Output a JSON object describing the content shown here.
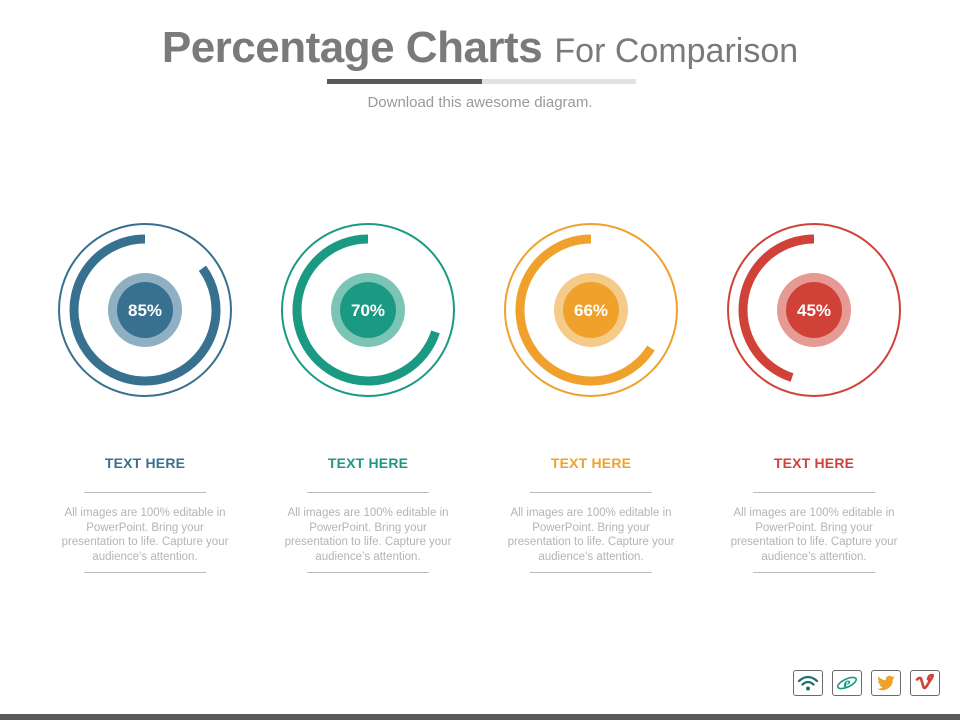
{
  "header": {
    "title_bold": "Percentage Charts",
    "title_light": "For Comparison",
    "subtitle": "Download this awesome diagram."
  },
  "chart_data": {
    "type": "pie",
    "style": "donut-gauges",
    "items": [
      {
        "value": 85,
        "label": "85%",
        "heading": "TEXT HERE",
        "color": "#37718f",
        "inner_color": "#8fb0c2"
      },
      {
        "value": 70,
        "label": "70%",
        "heading": "TEXT HERE",
        "color": "#1a9a82",
        "inner_color": "#7cc5b6"
      },
      {
        "value": 66,
        "label": "66%",
        "heading": "TEXT HERE",
        "color": "#efa12c",
        "inner_color": "#f5cb8a"
      },
      {
        "value": 45,
        "label": "45%",
        "heading": "TEXT HERE",
        "color": "#d04238",
        "inner_color": "#e69a94"
      }
    ]
  },
  "cards": [
    {
      "body": "All images are 100% editable in PowerPoint. Bring your presentation to life. Capture your audience’s attention."
    },
    {
      "body": "All images are 100% editable in PowerPoint. Bring your presentation to life. Capture your audience’s attention."
    },
    {
      "body": "All images are 100% editable in PowerPoint. Bring your presentation to life. Capture your audience’s attention."
    },
    {
      "body": "All images are 100% editable in PowerPoint. Bring your presentation to life. Capture your audience’s attention."
    }
  ],
  "social": [
    {
      "icon": "wifi-icon",
      "color": "#1f6f6a"
    },
    {
      "icon": "internet-explorer-icon",
      "color": "#1a9a82"
    },
    {
      "icon": "twitter-icon",
      "color": "#efa12c"
    },
    {
      "icon": "vimeo-icon",
      "color": "#d04238"
    }
  ]
}
